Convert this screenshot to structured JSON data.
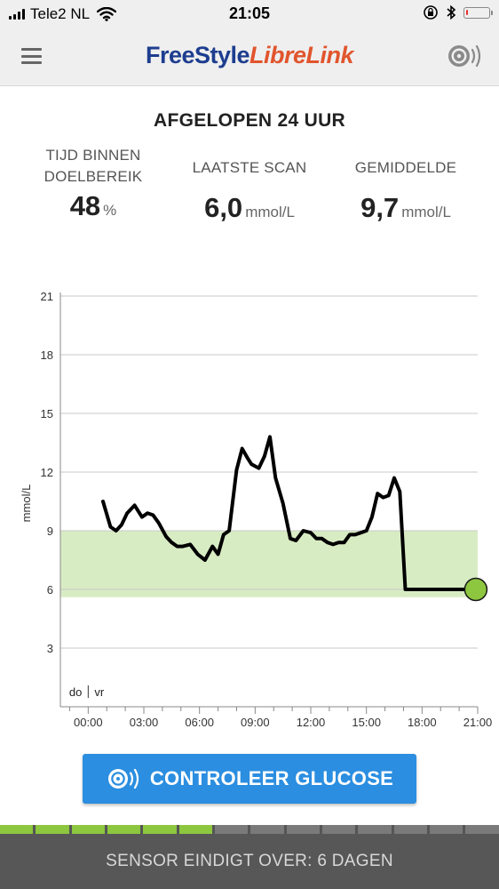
{
  "status_bar": {
    "carrier": "Tele2 NL",
    "time": "21:05",
    "battery_level": 0.08
  },
  "header": {
    "logo_part1": "FreeStyle",
    "logo_part2": "LibreLink",
    "menu_icon": "hamburger-menu-icon",
    "scan_icon": "sensor-scan-icon"
  },
  "summary": {
    "title": "AFGELOPEN 24 UUR",
    "time_in_range": {
      "label_line1": "TIJD BINNEN",
      "label_line2": "DOELBEREIK",
      "value": "48",
      "unit": "%"
    },
    "last_scan": {
      "label": "LAATSTE SCAN",
      "value": "6,0",
      "unit": "mmol/L"
    },
    "average": {
      "label": "GEMIDDELDE",
      "value": "9,7",
      "unit": "mmol/L"
    }
  },
  "chart_data": {
    "type": "line",
    "ylabel": "mmol/L",
    "ylim": [
      0,
      21
    ],
    "yticks": [
      3,
      6,
      9,
      12,
      15,
      18,
      21
    ],
    "xlim": [
      -1.5,
      21
    ],
    "xtick_labels": [
      "00:00",
      "03:00",
      "06:00",
      "09:00",
      "12:00",
      "15:00",
      "18:00",
      "21:00"
    ],
    "xtick_values": [
      0,
      3,
      6,
      9,
      12,
      15,
      18,
      21
    ],
    "day_labels": [
      "do",
      "vr"
    ],
    "day_boundary": 0,
    "target_range": [
      5.6,
      9
    ],
    "target_color": "#d8ecc4",
    "line_color": "#000000",
    "current_point_color": "#8dc63f",
    "x": [
      0.8,
      1.2,
      1.5,
      1.8,
      2.1,
      2.5,
      2.9,
      3.2,
      3.5,
      3.8,
      4.2,
      4.5,
      4.8,
      5.1,
      5.5,
      5.9,
      6.3,
      6.7,
      7.0,
      7.3,
      7.6,
      8.0,
      8.3,
      8.6,
      8.8,
      9.2,
      9.5,
      9.8,
      10.1,
      10.5,
      10.9,
      11.2,
      11.6,
      12.0,
      12.3,
      12.6,
      12.9,
      13.2,
      13.5,
      13.8,
      14.1,
      14.4,
      14.7,
      15.0,
      15.3,
      15.6,
      15.9,
      16.2,
      16.5,
      16.8,
      17.1,
      17.4,
      17.7,
      18.0,
      18.3,
      18.6,
      18.9,
      19.2,
      19.4,
      19.7,
      20.0,
      20.2,
      20.4,
      20.65,
      20.9
    ],
    "y": [
      10.5,
      9.2,
      9.0,
      9.3,
      9.9,
      10.3,
      9.7,
      9.9,
      9.8,
      9.4,
      8.7,
      8.4,
      8.2,
      8.2,
      8.3,
      7.8,
      7.5,
      8.2,
      7.8,
      8.8,
      9.0,
      12.1,
      13.2,
      12.7,
      12.4,
      12.2,
      12.8,
      13.8,
      11.7,
      10.4,
      8.6,
      8.5,
      9.0,
      8.9,
      8.6,
      8.6,
      8.4,
      8.3,
      8.4,
      8.4,
      8.8,
      8.8,
      8.9,
      9.0,
      9.7,
      10.9,
      10.7,
      10.8,
      11.7,
      11.0,
      6.0,
      6.0,
      6.0,
      6.0,
      6.0,
      6.0,
      6.0,
      6.0,
      6.0,
      6.0,
      6.0,
      6.0,
      6.0,
      6.0,
      6.0
    ],
    "current": {
      "x": 20.9,
      "y": 6.0
    }
  },
  "actions": {
    "check_glucose_label": "CONTROLEER GLUCOSE"
  },
  "sensor": {
    "footer_text": "SENSOR EINDIGT OVER: 6 DAGEN",
    "total_segments": 14,
    "used_segments": 6,
    "used_color": "#8dc63f",
    "remaining_color": "#7a7a7a"
  }
}
